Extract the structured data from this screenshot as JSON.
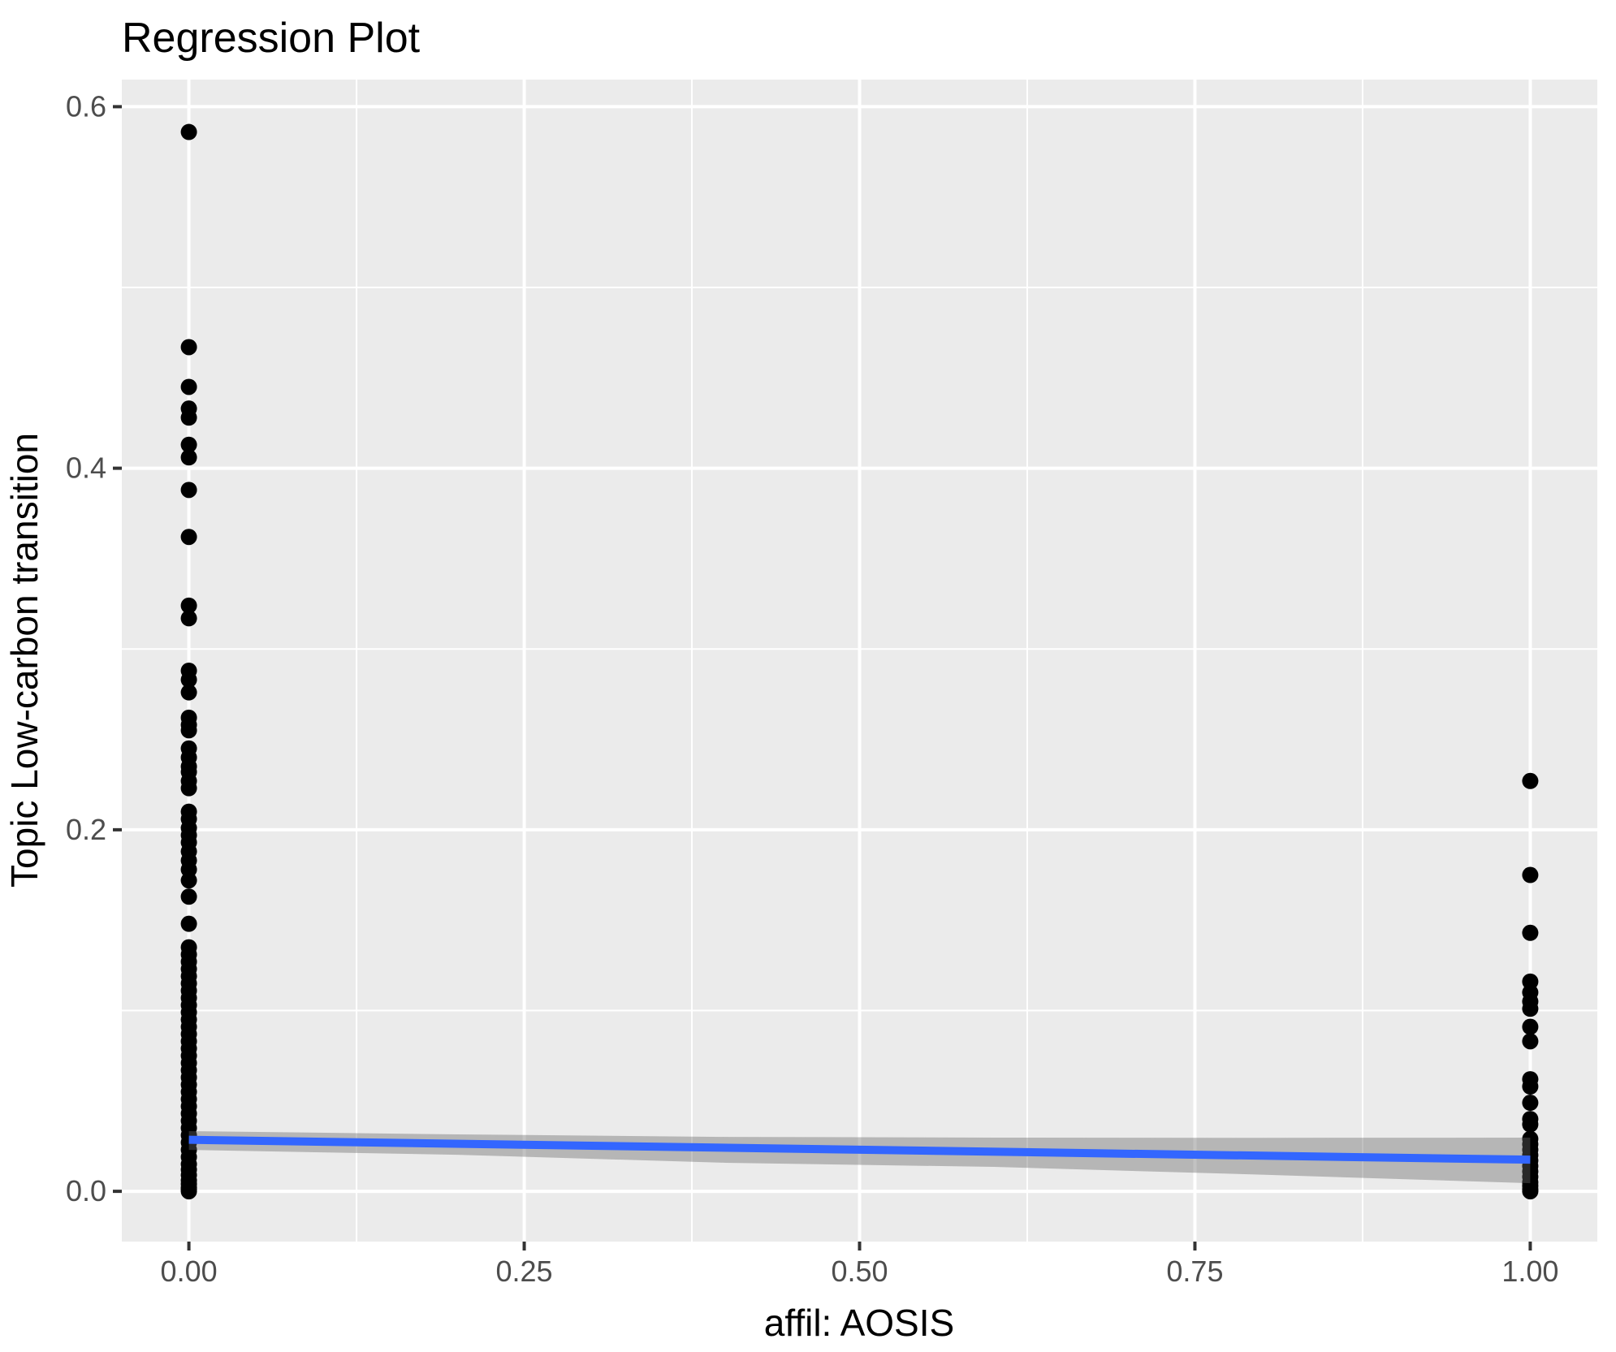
{
  "window": {
    "title": "Regression Plot"
  },
  "chart_data": {
    "type": "scatter",
    "title": "Regression Plot",
    "xlabel": "affil: AOSIS",
    "ylabel": "Topic Low-carbon transition",
    "legend": "none",
    "grid": true,
    "xlim": [
      -0.05,
      1.05
    ],
    "ylim": [
      -0.0278,
      0.615
    ],
    "x_ticks": {
      "values": [
        0,
        0.25,
        0.5,
        0.75,
        1.0
      ],
      "labels": [
        "0.00",
        "0.25",
        "0.50",
        "0.75",
        "1.00"
      ]
    },
    "y_ticks": {
      "values": [
        0,
        0.2,
        0.4,
        0.6
      ],
      "labels": [
        "0.0",
        "0.2",
        "0.4",
        "0.6"
      ]
    },
    "x_minor_gridlines": [
      0.125,
      0.375,
      0.625,
      0.875
    ],
    "y_minor_gridlines": [
      0.1,
      0.3,
      0.5
    ],
    "series": [
      {
        "name": "affil = 0",
        "x": 0,
        "y": [
          0.586,
          0.467,
          0.445,
          0.433,
          0.428,
          0.413,
          0.406,
          0.388,
          0.362,
          0.324,
          0.317,
          0.288,
          0.283,
          0.276,
          0.262,
          0.258,
          0.255,
          0.245,
          0.24,
          0.235,
          0.232,
          0.227,
          0.223,
          0.21,
          0.206,
          0.201,
          0.197,
          0.193,
          0.188,
          0.183,
          0.178,
          0.172,
          0.163,
          0.148,
          0.135,
          0.131,
          0.127,
          0.123,
          0.119,
          0.115,
          0.111,
          0.107,
          0.103,
          0.099,
          0.095,
          0.091,
          0.087,
          0.083,
          0.079,
          0.075,
          0.071,
          0.067,
          0.063,
          0.059,
          0.055,
          0.051,
          0.047,
          0.043,
          0.039,
          0.035,
          0.031,
          0.027,
          0.023,
          0.019,
          0.015,
          0.012,
          0.009,
          0.006,
          0.004,
          0.002,
          0.001,
          0.0
        ]
      },
      {
        "name": "affil = 1",
        "x": 1,
        "y": [
          0.227,
          0.175,
          0.143,
          0.116,
          0.11,
          0.105,
          0.101,
          0.091,
          0.083,
          0.062,
          0.058,
          0.049,
          0.04,
          0.037,
          0.029,
          0.026,
          0.023,
          0.02,
          0.017,
          0.014,
          0.011,
          0.008,
          0.005,
          0.003,
          0.001,
          0.0
        ]
      }
    ],
    "regression": {
      "line_endpoints": {
        "x": [
          0,
          1
        ],
        "y": [
          0.0285,
          0.0175
        ]
      },
      "ci_band": {
        "x": [
          0,
          0.2,
          0.4,
          0.6,
          0.8,
          1.0
        ],
        "upper": [
          0.0333,
          0.0315,
          0.0301,
          0.0297,
          0.0296,
          0.0297
        ],
        "lower": [
          0.0229,
          0.0202,
          0.0158,
          0.0135,
          0.0092,
          0.0045
        ]
      }
    },
    "colors": {
      "point": "#000000",
      "regression_line": "#3366FF",
      "ci_band": "rgba(102,102,102,0.4)",
      "panel_background": "#EBEBEB",
      "gridline": "#FFFFFF",
      "tick_text": "#4D4D4D",
      "axis_tick": "#333333",
      "title_text": "#000000"
    }
  }
}
